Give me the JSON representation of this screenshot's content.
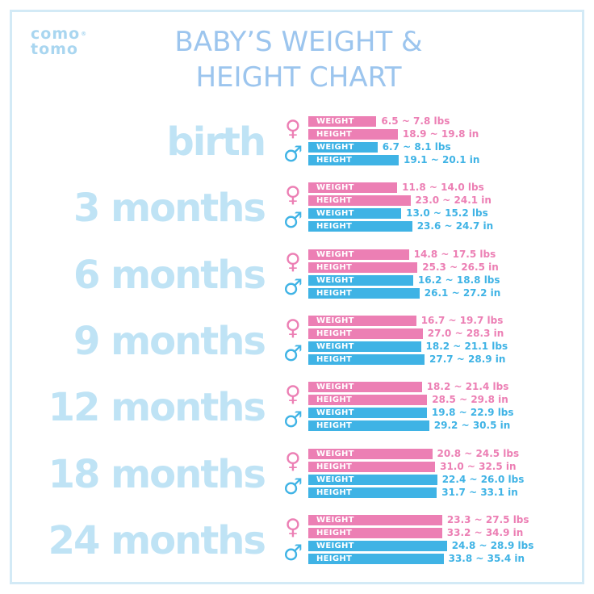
{
  "logo": {
    "line1": "como",
    "line2": "tomo",
    "reg": "®"
  },
  "title": {
    "line1": "BABY’S WEIGHT &",
    "line2": "HEIGHT CHART"
  },
  "colors": {
    "girl": "#ec7fb4",
    "boy": "#3fb3e5",
    "age_text": "#bfe3f5",
    "title": "#9cc5ee",
    "logo": "#a9d6f0",
    "frame": "#d3eaf6"
  },
  "icons": {
    "girl": "female-sign-icon",
    "boy": "male-sign-icon"
  },
  "symbols": {
    "girl": "♀",
    "boy": "♂"
  },
  "chart_data": {
    "type": "bar",
    "title": "BABY’S WEIGHT & HEIGHT CHART",
    "categories": [
      "birth",
      "3 months",
      "6 months",
      "9 months",
      "12 months",
      "18 months",
      "24 months"
    ],
    "units": {
      "weight": "lbs",
      "height": "in"
    },
    "series": [
      {
        "label": "WEIGHT",
        "gender": "girl",
        "unit": "lbs",
        "low": [
          6.5,
          11.8,
          14.8,
          16.7,
          18.2,
          20.8,
          23.3
        ],
        "high": [
          7.8,
          14.0,
          17.5,
          19.7,
          21.4,
          24.5,
          27.5
        ],
        "text": [
          "6.5 ~ 7.8 lbs",
          "11.8 ~ 14.0 lbs",
          "14.8 ~ 17.5 lbs",
          "16.7 ~ 19.7 lbs",
          "18.2 ~ 21.4 lbs",
          "20.8 ~ 24.5 lbs",
          "23.3 ~ 27.5 lbs"
        ]
      },
      {
        "label": "HEIGHT",
        "gender": "girl",
        "unit": "in",
        "low": [
          18.9,
          23.0,
          25.3,
          27.0,
          28.5,
          31.0,
          33.2
        ],
        "high": [
          19.8,
          24.1,
          26.5,
          28.3,
          29.8,
          32.5,
          34.9
        ],
        "text": [
          "18.9 ~ 19.8 in",
          "23.0 ~ 24.1 in",
          "25.3 ~ 26.5 in",
          "27.0 ~ 28.3 in",
          "28.5 ~ 29.8 in",
          "31.0 ~ 32.5 in",
          "33.2 ~ 34.9 in"
        ]
      },
      {
        "label": "WEIGHT",
        "gender": "boy",
        "unit": "lbs",
        "low": [
          6.7,
          13.0,
          16.2,
          18.2,
          19.8,
          22.4,
          24.8
        ],
        "high": [
          8.1,
          15.2,
          18.8,
          21.1,
          22.9,
          26.0,
          28.9
        ],
        "text": [
          "6.7 ~ 8.1 lbs",
          "13.0 ~ 15.2 lbs",
          "16.2 ~ 18.8 lbs",
          "18.2 ~ 21.1 lbs",
          "19.8 ~ 22.9 lbs",
          "22.4 ~ 26.0 lbs",
          "24.8 ~ 28.9 lbs"
        ]
      },
      {
        "label": "HEIGHT",
        "gender": "boy",
        "unit": "in",
        "low": [
          19.1,
          23.6,
          26.1,
          27.7,
          29.2,
          31.7,
          33.8
        ],
        "high": [
          20.1,
          24.7,
          27.2,
          28.9,
          30.5,
          33.1,
          35.4
        ],
        "text": [
          "19.1 ~ 20.1 in",
          "23.6 ~ 24.7 in",
          "26.1 ~ 27.2 in",
          "27.7 ~ 28.9 in",
          "29.2 ~ 30.5 in",
          "31.7 ~ 33.1 in",
          "33.8 ~ 35.4 in"
        ]
      }
    ]
  }
}
